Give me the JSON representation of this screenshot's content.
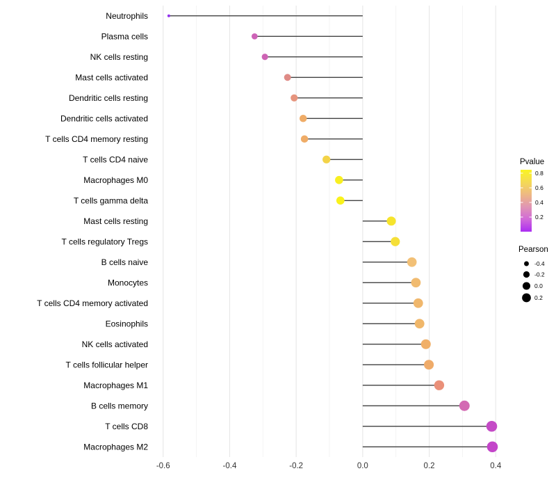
{
  "chart_data": {
    "type": "lollipop",
    "title": "",
    "xlabel": "",
    "ylabel": "",
    "xlim": [
      -0.635,
      0.435
    ],
    "x_ticks": [
      -0.6,
      -0.4,
      -0.2,
      0.0,
      0.2,
      0.4
    ],
    "x_tick_labels": [
      "-0.6",
      "-0.4",
      "-0.2",
      "0.0",
      "0.2",
      "0.4"
    ],
    "grid_minor_step": 0.1,
    "grid_on": true,
    "legend_position": "right",
    "points": [
      {
        "label": "Neutrophils",
        "pearson": -0.583,
        "pvalue": 0.05,
        "color": "#9232ec"
      },
      {
        "label": "Plasma cells",
        "pearson": -0.325,
        "pvalue": 0.33,
        "color": "#cd63b7"
      },
      {
        "label": "NK cells resting",
        "pearson": -0.294,
        "pvalue": 0.34,
        "color": "#cd63b4"
      },
      {
        "label": "Mast cells activated",
        "pearson": -0.226,
        "pvalue": 0.45,
        "color": "#df8b86"
      },
      {
        "label": "Dendritic cells resting",
        "pearson": -0.206,
        "pvalue": 0.49,
        "color": "#e6947d"
      },
      {
        "label": "Dendritic cells activated",
        "pearson": -0.179,
        "pvalue": 0.6,
        "color": "#efac67"
      },
      {
        "label": "T cells CD4 memory resting",
        "pearson": -0.175,
        "pvalue": 0.6,
        "color": "#efac67"
      },
      {
        "label": "T cells CD4 naive",
        "pearson": -0.109,
        "pvalue": 0.72,
        "color": "#f3d348"
      },
      {
        "label": "Macrophages M0",
        "pearson": -0.071,
        "pvalue": 0.83,
        "color": "#f8ef21"
      },
      {
        "label": "T cells gamma delta",
        "pearson": -0.067,
        "pvalue": 0.84,
        "color": "#f9f21b"
      },
      {
        "label": "Mast cells resting",
        "pearson": 0.086,
        "pvalue": 0.79,
        "color": "#f6e42c"
      },
      {
        "label": "T cells regulatory  Tregs",
        "pearson": 0.098,
        "pvalue": 0.76,
        "color": "#f5df38"
      },
      {
        "label": "B cells naive",
        "pearson": 0.148,
        "pvalue": 0.66,
        "color": "#f2c076"
      },
      {
        "label": "Monocytes",
        "pearson": 0.16,
        "pvalue": 0.64,
        "color": "#f1bb70"
      },
      {
        "label": "T cells CD4 memory activated",
        "pearson": 0.167,
        "pvalue": 0.62,
        "color": "#f0b76c"
      },
      {
        "label": "Eosinophils",
        "pearson": 0.171,
        "pvalue": 0.62,
        "color": "#f0b76a"
      },
      {
        "label": "NK cells activated",
        "pearson": 0.19,
        "pvalue": 0.6,
        "color": "#f0af68"
      },
      {
        "label": "T cells follicular helper",
        "pearson": 0.199,
        "pvalue": 0.58,
        "color": "#efab69"
      },
      {
        "label": "Macrophages M1",
        "pearson": 0.23,
        "pvalue": 0.48,
        "color": "#ea9079"
      },
      {
        "label": "B cells memory",
        "pearson": 0.306,
        "pvalue": 0.34,
        "color": "#d36ab3"
      },
      {
        "label": "T cells CD8",
        "pearson": 0.388,
        "pvalue": 0.27,
        "color": "#c44bc6"
      },
      {
        "label": "Macrophages M2",
        "pearson": 0.39,
        "pvalue": 0.26,
        "color": "#c345c9"
      }
    ],
    "legend": {
      "pvalue": {
        "title": "Pvalue",
        "tick_labels": [
          "0.8",
          "0.6",
          "0.4",
          "0.2"
        ],
        "tick_values": [
          0.8,
          0.6,
          0.4,
          0.2
        ],
        "bar_range": [
          0.0,
          0.847
        ],
        "gradient_top_to_bottom": [
          "#faf421",
          "#f4da55",
          "#eeb884",
          "#e095b4",
          "#d169d8",
          "#ab2df2"
        ]
      },
      "pearson": {
        "title": "Pearson",
        "items": [
          {
            "label": "-0.4",
            "value": -0.4
          },
          {
            "label": "-0.2",
            "value": -0.2
          },
          {
            "label": "0.0",
            "value": 0.0
          },
          {
            "label": "0.2",
            "value": 0.2
          }
        ],
        "dot_color": "#000000"
      }
    },
    "style": {
      "stem_color": "#2e2e2e",
      "grid_major_color": "#e7e7e7",
      "grid_minor_color": "#f1f1f1",
      "axis_text_color": "#333333",
      "label_text_color": "#000000",
      "background": "#ffffff"
    }
  }
}
